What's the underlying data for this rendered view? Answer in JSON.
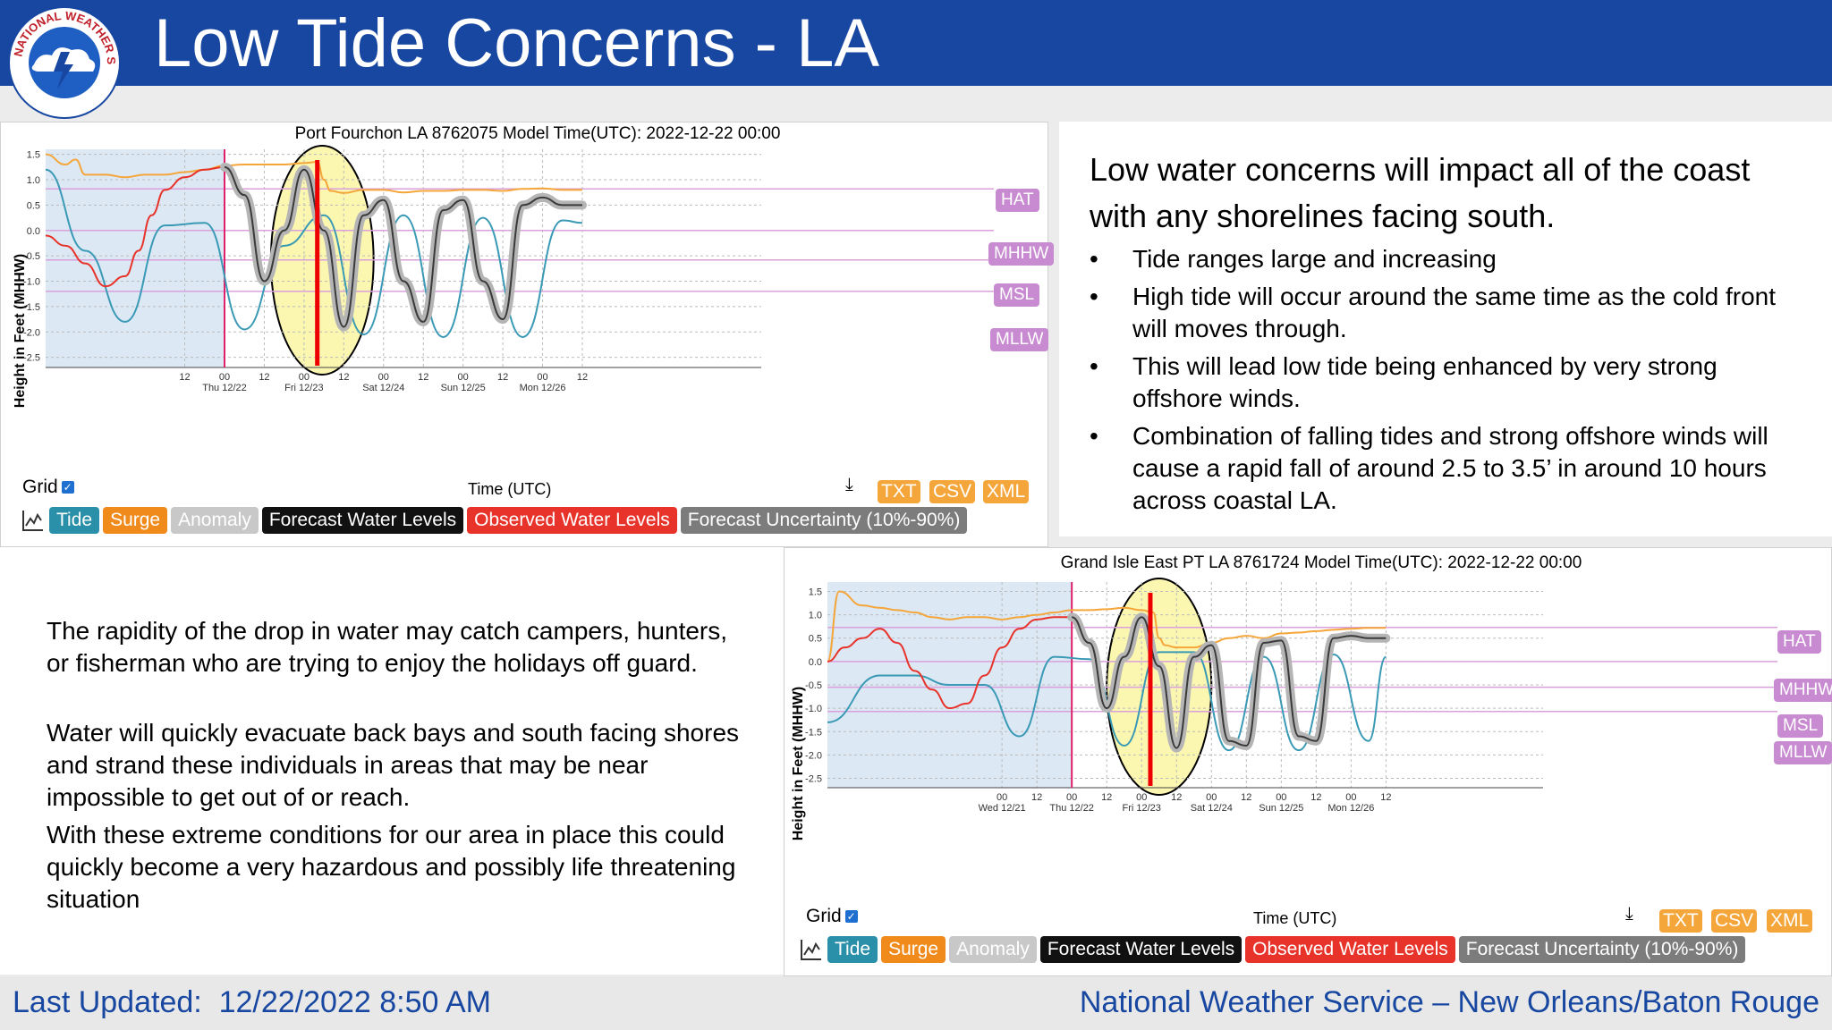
{
  "header": {
    "title": "Low Tide Concerns - LA",
    "logo_text": "NATIONAL WEATHER SERVICE"
  },
  "right_text": {
    "headline": "Low water concerns will impact all of the coast with any shorelines facing south.",
    "bullets": [
      "Tide ranges large and increasing",
      "High tide will occur around the same time as the cold front will moves through.",
      "This will lead low tide being enhanced by very strong offshore winds.",
      "Combination of falling tides and strong offshore winds will cause a rapid fall of around 2.5 to 3.5’ in around 10 hours across coastal LA."
    ]
  },
  "left_text": {
    "paragraphs": [
      "The rapidity of the drop in water may catch campers, hunters, or fisherman who are trying to enjoy the holidays off guard.",
      "Water will quickly evacuate back bays and south facing shores and strand these individuals in areas that may be near impossible to get out of or reach.",
      "With these extreme conditions for our area in place this could quickly become a very hazardous and possibly life threatening situation"
    ]
  },
  "footer": {
    "updated": "Last Updated:  12/22/2022 8:50 AM",
    "office": "National Weather Service – New Orleans/Baton Rouge"
  },
  "colors": {
    "header_bg": "#1747a0",
    "tide": "#3a9ab5",
    "surge": "#f5a63a",
    "observed": "#e8332a",
    "forecast": "#7c7c7c",
    "ref_line": "#d9a0dc",
    "highlight": "#fbf6b0",
    "past_shade": "#dce8f4",
    "now_line": "#e0206a",
    "marker": "#ee0000"
  },
  "controls": {
    "grid_label": "Grid",
    "grid_checked": true,
    "download_icon": "download-icon",
    "formats": [
      "TXT",
      "CSV",
      "XML"
    ],
    "legend": [
      "Tide",
      "Surge",
      "Anomaly",
      "Forecast Water Levels",
      "Observed Water Levels",
      "Forecast Uncertainty (10%-90%)"
    ]
  },
  "chart_data": [
    {
      "type": "line",
      "title": "Port Fourchon LA 8762075 Model Time(UTC): 2022-12-22 00:00",
      "xlabel": "Time (UTC)",
      "ylabel": "Height in Feet (MHHW)",
      "ylim": [
        -2.7,
        1.6
      ],
      "yticks": [
        1.5,
        1.0,
        0.5,
        0.0,
        -0.5,
        -1.0,
        -1.5,
        -2.0,
        -2.5
      ],
      "x_range_hours": [
        -54,
        162
      ],
      "x_ticks": [
        {
          "h": -12,
          "label": "12",
          "sub": ""
        },
        {
          "h": 0,
          "label": "00",
          "sub": "Thu 12/22"
        },
        {
          "h": 12,
          "label": "12",
          "sub": ""
        },
        {
          "h": 24,
          "label": "00",
          "sub": "Fri 12/23"
        },
        {
          "h": 36,
          "label": "12",
          "sub": ""
        },
        {
          "h": 48,
          "label": "00",
          "sub": "Sat 12/24"
        },
        {
          "h": 60,
          "label": "12",
          "sub": ""
        },
        {
          "h": 72,
          "label": "00",
          "sub": "Sun 12/25"
        },
        {
          "h": 84,
          "label": "12",
          "sub": ""
        },
        {
          "h": 96,
          "label": "00",
          "sub": "Mon 12/26"
        },
        {
          "h": 108,
          "label": "12",
          "sub": ""
        }
      ],
      "reference_lines": [
        {
          "name": "HAT",
          "y": 0.82
        },
        {
          "name": "MHHW",
          "y": 0.0
        },
        {
          "name": "MSL",
          "y": -0.58
        },
        {
          "name": "MLLW",
          "y": -1.2
        }
      ],
      "past_shade_hours": [
        -54,
        0
      ],
      "now_hour": 0,
      "marker_hour": 28,
      "highlight_ellipse_hours": [
        14,
        45
      ],
      "legend": [
        "Tide",
        "Surge",
        "Anomaly",
        "Forecast Water Levels",
        "Observed Water Levels",
        "Forecast Uncertainty (10%-90%)"
      ],
      "series": [
        {
          "name": "Tide",
          "x": [
            -54,
            -42,
            -30,
            -18,
            -6,
            6,
            18,
            30,
            42,
            54,
            66,
            78,
            90,
            102,
            108
          ],
          "values": [
            1.2,
            -0.4,
            -1.8,
            0.1,
            0.15,
            -1.95,
            -0.3,
            0.3,
            -2.05,
            0.3,
            -2.1,
            0.25,
            -2.1,
            0.2,
            0.15
          ]
        },
        {
          "name": "Surge",
          "x": [
            -54,
            -48,
            -45,
            -42,
            -36,
            -30,
            -24,
            -18,
            -12,
            -6,
            0,
            6,
            12,
            18,
            24,
            28,
            30,
            32,
            36,
            42,
            48,
            54,
            60,
            66,
            72,
            78,
            84,
            90,
            96,
            102,
            108
          ],
          "values": [
            1.5,
            1.3,
            1.4,
            1.1,
            1.1,
            1.05,
            1.1,
            1.1,
            1.15,
            1.2,
            1.28,
            1.3,
            1.3,
            1.3,
            1.33,
            1.35,
            1.0,
            0.78,
            0.74,
            0.8,
            0.8,
            0.75,
            0.78,
            0.78,
            0.8,
            0.8,
            0.78,
            0.82,
            0.83,
            0.8,
            0.8
          ]
        },
        {
          "name": "Observed Water Levels",
          "x": [
            -54,
            -48,
            -42,
            -36,
            -30,
            -26,
            -22,
            -18,
            -12,
            -6,
            0
          ],
          "values": [
            -0.1,
            -0.3,
            -0.65,
            -1.1,
            -0.9,
            -0.4,
            0.3,
            0.8,
            1.05,
            1.2,
            1.25
          ]
        },
        {
          "name": "Forecast Water Levels",
          "x": [
            0,
            6,
            12,
            18,
            24,
            30,
            36,
            42,
            48,
            54,
            60,
            66,
            72,
            78,
            84,
            90,
            96,
            102,
            108
          ],
          "values": [
            1.25,
            0.7,
            -1.0,
            0.0,
            1.2,
            0.0,
            -1.9,
            0.3,
            0.6,
            -1.0,
            -1.8,
            0.4,
            0.6,
            -1.0,
            -1.75,
            0.5,
            0.65,
            0.5,
            0.5
          ]
        }
      ]
    },
    {
      "type": "line",
      "title": "Grand Isle East PT LA 8761724 Model Time(UTC): 2022-12-22 00:00",
      "xlabel": "Time (UTC)",
      "ylabel": "Height in Feet (MHHW)",
      "ylim": [
        -2.7,
        1.7
      ],
      "yticks": [
        1.5,
        1.0,
        0.5,
        0.0,
        -0.5,
        -1.0,
        -1.5,
        -2.0,
        -2.5
      ],
      "x_range_hours": [
        -84,
        162
      ],
      "x_ticks": [
        {
          "h": -24,
          "label": "00",
          "sub": "Wed 12/21"
        },
        {
          "h": -12,
          "label": "12",
          "sub": ""
        },
        {
          "h": 0,
          "label": "00",
          "sub": "Thu 12/22"
        },
        {
          "h": 12,
          "label": "12",
          "sub": ""
        },
        {
          "h": 24,
          "label": "00",
          "sub": "Fri 12/23"
        },
        {
          "h": 36,
          "label": "12",
          "sub": ""
        },
        {
          "h": 48,
          "label": "00",
          "sub": "Sat 12/24"
        },
        {
          "h": 60,
          "label": "12",
          "sub": ""
        },
        {
          "h": 72,
          "label": "00",
          "sub": "Sun 12/25"
        },
        {
          "h": 84,
          "label": "12",
          "sub": ""
        },
        {
          "h": 96,
          "label": "00",
          "sub": "Mon 12/26"
        },
        {
          "h": 108,
          "label": "12",
          "sub": ""
        }
      ],
      "reference_lines": [
        {
          "name": "HAT",
          "y": 0.73
        },
        {
          "name": "MHHW",
          "y": 0.0
        },
        {
          "name": "MSL",
          "y": -0.55
        },
        {
          "name": "MLLW",
          "y": -1.07
        }
      ],
      "past_shade_hours": [
        -84,
        0
      ],
      "now_hour": 0,
      "marker_hour": 27,
      "highlight_ellipse_hours": [
        12,
        48
      ],
      "legend": [
        "Tide",
        "Surge",
        "Anomaly",
        "Forecast Water Levels",
        "Observed Water Levels",
        "Forecast Uncertainty (10%-90%)"
      ],
      "series": [
        {
          "name": "Tide",
          "x": [
            -84,
            -66,
            -54,
            -42,
            -30,
            -18,
            -6,
            6,
            18,
            30,
            42,
            54,
            66,
            78,
            90,
            102,
            108
          ],
          "values": [
            -1.3,
            -0.3,
            -0.3,
            -0.5,
            -0.5,
            -1.6,
            0.1,
            0.05,
            -1.8,
            0.2,
            0.2,
            -1.9,
            0.1,
            -1.9,
            0.15,
            -1.7,
            0.1
          ]
        },
        {
          "name": "Surge",
          "x": [
            -84,
            -80,
            -72,
            -66,
            -60,
            -54,
            -48,
            -42,
            -36,
            -30,
            -24,
            -18,
            -12,
            -6,
            0,
            6,
            12,
            18,
            24,
            28,
            30,
            32,
            36,
            42,
            48,
            54,
            60,
            66,
            72,
            78,
            84,
            90,
            96,
            102,
            108
          ],
          "values": [
            0.0,
            1.5,
            1.2,
            1.15,
            1.1,
            1.05,
            0.95,
            0.9,
            0.95,
            0.95,
            0.9,
            0.95,
            1.0,
            1.05,
            1.1,
            1.1,
            1.12,
            1.15,
            1.1,
            1.05,
            0.5,
            0.35,
            0.3,
            0.3,
            0.4,
            0.5,
            0.55,
            0.5,
            0.6,
            0.62,
            0.65,
            0.68,
            0.7,
            0.72,
            0.72
          ]
        },
        {
          "name": "Observed Water Levels",
          "x": [
            -84,
            -78,
            -72,
            -66,
            -60,
            -54,
            -48,
            -42,
            -36,
            -30,
            -24,
            -18,
            -12,
            -6,
            0
          ],
          "values": [
            0.0,
            0.3,
            0.5,
            0.7,
            0.4,
            -0.2,
            -0.6,
            -1.0,
            -0.9,
            -0.3,
            0.3,
            0.7,
            0.9,
            0.95,
            0.95
          ]
        },
        {
          "name": "Forecast Water Levels",
          "x": [
            0,
            6,
            12,
            18,
            24,
            30,
            36,
            42,
            48,
            54,
            60,
            66,
            72,
            78,
            84,
            90,
            96,
            102,
            108
          ],
          "values": [
            0.95,
            0.4,
            -1.0,
            0.1,
            0.95,
            -0.1,
            -1.85,
            0.1,
            0.35,
            -1.7,
            -1.8,
            0.4,
            0.45,
            -1.6,
            -1.7,
            0.5,
            0.55,
            0.5,
            0.5
          ]
        }
      ]
    }
  ]
}
